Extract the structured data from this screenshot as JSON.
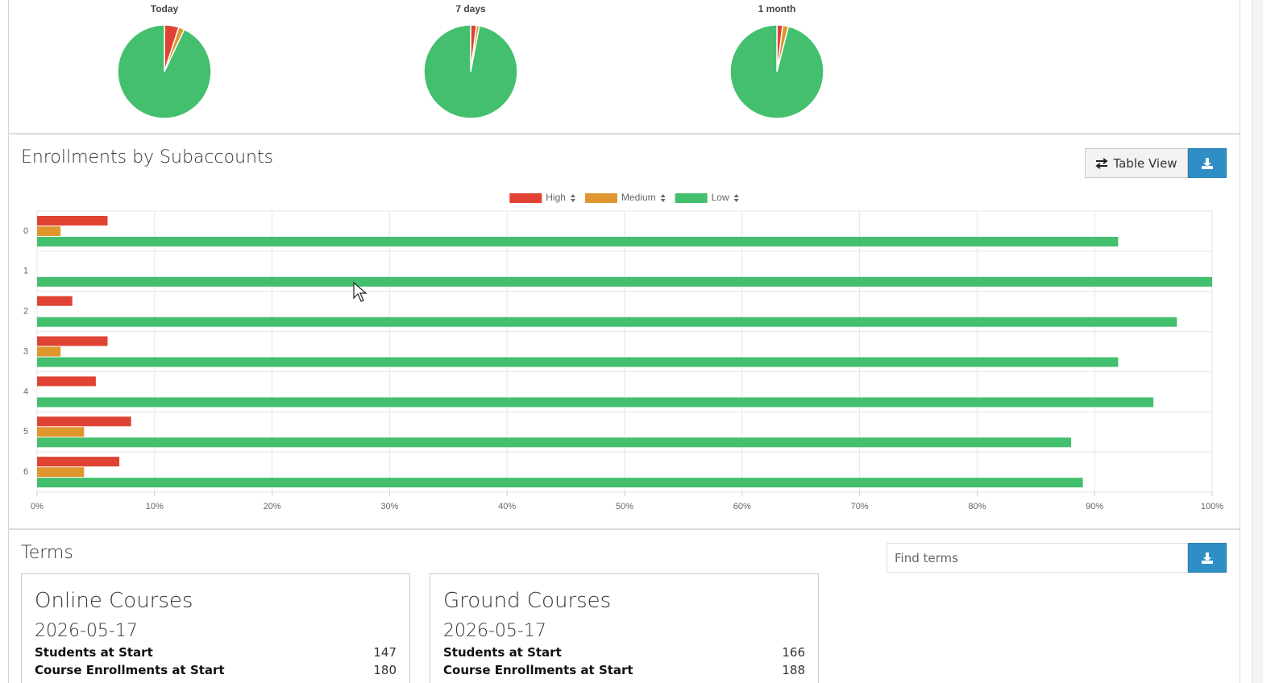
{
  "chart_data": [
    {
      "type": "pie",
      "title": "Today",
      "values": [
        5,
        2,
        93
      ],
      "colors": [
        "#e04333",
        "#e0962e",
        "#43bf6d"
      ]
    },
    {
      "type": "pie",
      "title": "7 days",
      "values": [
        2,
        1,
        97
      ],
      "colors": [
        "#e04333",
        "#e0962e",
        "#43bf6d"
      ]
    },
    {
      "type": "pie",
      "title": "1 month",
      "values": [
        2,
        2,
        96
      ],
      "colors": [
        "#e04333",
        "#e0962e",
        "#43bf6d"
      ]
    },
    {
      "type": "bar",
      "orientation": "horizontal",
      "categories": [
        "0",
        "1",
        "2",
        "3",
        "4",
        "5",
        "6"
      ],
      "series": [
        {
          "name": "High",
          "color": "#e04333",
          "values": [
            6,
            0,
            3,
            6,
            5,
            8,
            7
          ]
        },
        {
          "name": "Medium",
          "color": "#e0962e",
          "values": [
            2,
            0,
            0,
            2,
            0,
            4,
            4
          ]
        },
        {
          "name": "Low",
          "color": "#43bf6d",
          "values": [
            92,
            100,
            97,
            92,
            95,
            88,
            89
          ]
        }
      ],
      "xlim": [
        0,
        100
      ],
      "xticks": [
        {
          "value": 0,
          "label": "0%"
        },
        {
          "value": 10,
          "label": "10%"
        },
        {
          "value": 20,
          "label": "20%"
        },
        {
          "value": 30,
          "label": "30%"
        },
        {
          "value": 40,
          "label": "40%"
        },
        {
          "value": 50,
          "label": "50%"
        },
        {
          "value": 60,
          "label": "60%"
        },
        {
          "value": 70,
          "label": "70%"
        },
        {
          "value": 80,
          "label": "80%"
        },
        {
          "value": 90,
          "label": "90%"
        },
        {
          "value": 100,
          "label": "100%"
        }
      ],
      "grid": true,
      "legend": "top"
    }
  ],
  "enrollments": {
    "title": "Enrollments by Subaccounts",
    "button": "Table View"
  },
  "terms": {
    "title": "Terms",
    "search_placeholder": "Find terms",
    "cards": [
      {
        "name": "Online Courses",
        "date": "2026-05-17",
        "rows": [
          [
            "Students at Start",
            147
          ],
          [
            "Course Enrollments at Start",
            180
          ]
        ]
      },
      {
        "name": "Ground Courses",
        "date": "2026-05-17",
        "rows": [
          [
            "Students at Start",
            166
          ],
          [
            "Course Enrollments at Start",
            188
          ]
        ]
      }
    ]
  }
}
